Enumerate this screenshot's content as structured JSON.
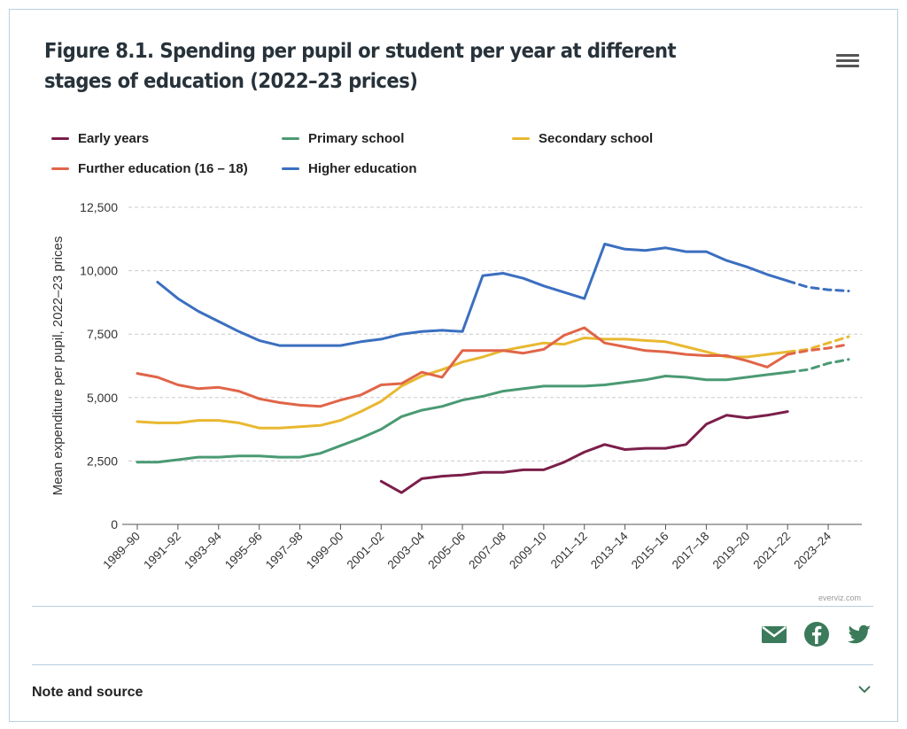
{
  "header": {
    "title": "Figure 8.1. Spending per pupil or student per year at different stages of education (2022–23 prices)",
    "menu_icon": "hamburger-menu-icon"
  },
  "footer": {
    "credit": "everviz.com",
    "share_icons": [
      "email-icon",
      "facebook-icon",
      "twitter-icon"
    ],
    "note_label": "Note and source",
    "share_color": "#3b7a5a"
  },
  "chart_data": {
    "type": "line",
    "ylabel": "Mean expenditure per pupil, 2022–23 prices",
    "xlabel": "",
    "ylim": [
      0,
      12500
    ],
    "yticks": [
      0,
      2500,
      5000,
      7500,
      10000,
      12500
    ],
    "ytick_labels": [
      "0",
      "2,500",
      "5,000",
      "7,500",
      "10,000",
      "12,500"
    ],
    "grid": "horizontal dashed",
    "legend_position": "top",
    "categories": [
      "1989–90",
      "1990–91",
      "1991–92",
      "1992–93",
      "1993–94",
      "1994–95",
      "1995–96",
      "1996–97",
      "1997–98",
      "1998–99",
      "1999–00",
      "2000–01",
      "2001–02",
      "2002–03",
      "2003–04",
      "2004–05",
      "2005–06",
      "2006–07",
      "2007–08",
      "2008–09",
      "2009–10",
      "2010–11",
      "2011–12",
      "2012–13",
      "2013–14",
      "2014–15",
      "2015–16",
      "2016–17",
      "2017–18",
      "2018–19",
      "2019–20",
      "2020–21",
      "2021–22",
      "2022–23",
      "2023–24",
      "2024–25"
    ],
    "tick_labels": [
      "1989–90",
      "1991–92",
      "1993–94",
      "1995–96",
      "1997–98",
      "1999–00",
      "2001–02",
      "2003–04",
      "2005–06",
      "2007–08",
      "2009–10",
      "2011–12",
      "2013–14",
      "2015–16",
      "2017–18",
      "2019–20",
      "2021–22",
      "2023–24"
    ],
    "projection_from": "2021–22",
    "series": [
      {
        "name": "Early years",
        "color": "#7b1e4a",
        "values": [
          null,
          null,
          null,
          null,
          null,
          null,
          null,
          null,
          null,
          null,
          null,
          null,
          1700,
          1250,
          1800,
          1900,
          1950,
          2050,
          2050,
          2150,
          2150,
          2450,
          2850,
          3150,
          2950,
          3000,
          3000,
          3150,
          3950,
          4300,
          4200,
          4300,
          4450,
          null,
          null,
          null
        ]
      },
      {
        "name": "Primary school",
        "color": "#4a9a73",
        "values": [
          2450,
          2450,
          2550,
          2650,
          2650,
          2700,
          2700,
          2650,
          2650,
          2800,
          3100,
          3400,
          3750,
          4250,
          4500,
          4650,
          4900,
          5050,
          5250,
          5350,
          5450,
          5450,
          5450,
          5500,
          5600,
          5700,
          5850,
          5800,
          5700,
          5700,
          5800,
          5900,
          6000,
          6100,
          6350,
          6500
        ]
      },
      {
        "name": "Secondary school",
        "color": "#e8b830",
        "values": [
          4050,
          4000,
          4000,
          4100,
          4100,
          4000,
          3800,
          3800,
          3850,
          3900,
          4100,
          4450,
          4850,
          5450,
          5850,
          6100,
          6400,
          6600,
          6850,
          7000,
          7150,
          7100,
          7350,
          7300,
          7300,
          7250,
          7200,
          7000,
          6800,
          6600,
          6600,
          6700,
          6800,
          6900,
          7150,
          7400
        ]
      },
      {
        "name": "Further education (16 – 18)",
        "color": "#e06548",
        "values": [
          5950,
          5800,
          5500,
          5350,
          5400,
          5250,
          4950,
          4800,
          4700,
          4650,
          4900,
          5100,
          5500,
          5550,
          6000,
          5800,
          6850,
          6850,
          6850,
          6750,
          6900,
          7450,
          7750,
          7150,
          7000,
          6850,
          6800,
          6700,
          6650,
          6650,
          6450,
          6200,
          6700,
          6850,
          6950,
          7100
        ]
      },
      {
        "name": "Higher education",
        "color": "#3b6fc0",
        "values": [
          null,
          9550,
          8900,
          8400,
          8000,
          7600,
          7250,
          7050,
          7050,
          7050,
          7050,
          7200,
          7300,
          7500,
          7600,
          7650,
          7600,
          9800,
          9900,
          9700,
          9400,
          9150,
          8900,
          11050,
          10850,
          10800,
          10900,
          10750,
          10750,
          10400,
          10150,
          9850,
          9600,
          9350,
          9250,
          9200
        ]
      }
    ]
  }
}
